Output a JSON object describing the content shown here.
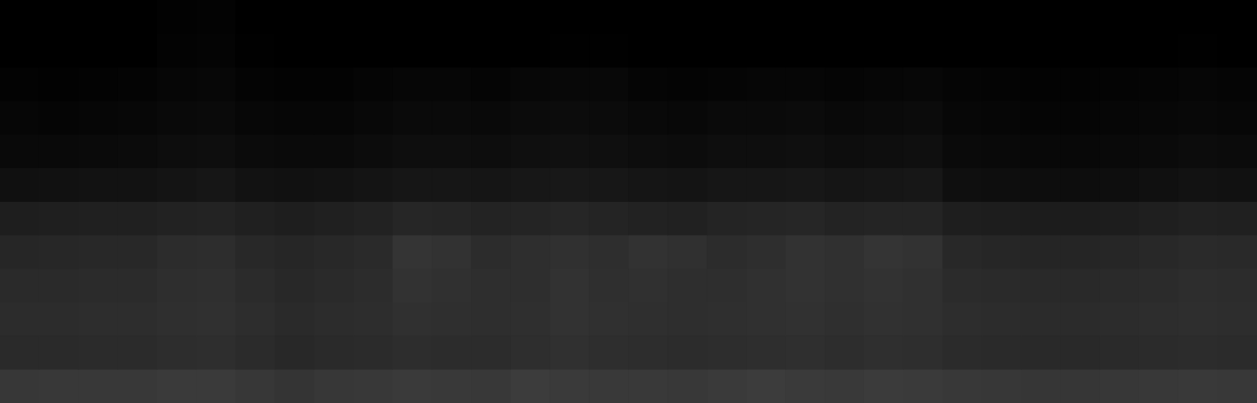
{
  "chart_data": {
    "type": "heatmap",
    "tick_labels": false,
    "color_range": [
      0,
      255
    ],
    "cells": [
      [
        0,
        0,
        0,
        0,
        2,
        3,
        0,
        0,
        0,
        0,
        0,
        0,
        0,
        0,
        0,
        0,
        0,
        0,
        0,
        0,
        0,
        0,
        0,
        0,
        0,
        0,
        0,
        0,
        0,
        0,
        0,
        0
      ],
      [
        0,
        0,
        0,
        0,
        3,
        4,
        1,
        0,
        0,
        0,
        0,
        0,
        0,
        0,
        1,
        1,
        0,
        0,
        0,
        0,
        0,
        0,
        0,
        0,
        0,
        0,
        0,
        0,
        0,
        0,
        1,
        0
      ],
      [
        3,
        2,
        3,
        4,
        6,
        7,
        4,
        3,
        3,
        5,
        6,
        6,
        5,
        7,
        8,
        8,
        5,
        4,
        5,
        6,
        6,
        5,
        6,
        7,
        5,
        4,
        3,
        3,
        4,
        5,
        6,
        5
      ],
      [
        6,
        5,
        6,
        7,
        9,
        10,
        7,
        6,
        6,
        8,
        10,
        10,
        9,
        11,
        12,
        11,
        9,
        8,
        10,
        10,
        11,
        9,
        10,
        11,
        7,
        6,
        5,
        5,
        6,
        7,
        8,
        7
      ],
      [
        9,
        9,
        10,
        11,
        13,
        14,
        11,
        10,
        10,
        12,
        14,
        14,
        13,
        15,
        16,
        15,
        13,
        12,
        14,
        14,
        15,
        13,
        14,
        15,
        10,
        9,
        8,
        8,
        9,
        10,
        12,
        11
      ],
      [
        16,
        17,
        18,
        18,
        20,
        22,
        18,
        17,
        18,
        20,
        22,
        22,
        21,
        23,
        24,
        23,
        21,
        20,
        22,
        22,
        23,
        21,
        22,
        23,
        15,
        14,
        13,
        13,
        14,
        16,
        18,
        17
      ],
      [
        30,
        31,
        32,
        32,
        34,
        35,
        32,
        30,
        32,
        34,
        38,
        37,
        35,
        36,
        38,
        36,
        34,
        33,
        36,
        37,
        38,
        35,
        36,
        36,
        30,
        29,
        28,
        28,
        29,
        31,
        33,
        32
      ],
      [
        38,
        39,
        40,
        40,
        44,
        45,
        40,
        38,
        40,
        42,
        52,
        50,
        44,
        46,
        48,
        46,
        50,
        48,
        44,
        46,
        50,
        48,
        52,
        50,
        40,
        38,
        37,
        37,
        38,
        40,
        42,
        41
      ],
      [
        42,
        42,
        43,
        43,
        46,
        47,
        43,
        40,
        42,
        44,
        50,
        48,
        46,
        46,
        50,
        47,
        48,
        46,
        46,
        48,
        50,
        48,
        50,
        48,
        43,
        42,
        41,
        41,
        42,
        43,
        45,
        44
      ],
      [
        44,
        44,
        45,
        45,
        47,
        48,
        45,
        42,
        44,
        45,
        48,
        47,
        46,
        47,
        50,
        48,
        47,
        46,
        47,
        48,
        49,
        47,
        49,
        48,
        45,
        44,
        43,
        43,
        44,
        45,
        46,
        45
      ],
      [
        42,
        42,
        43,
        43,
        45,
        46,
        43,
        40,
        42,
        43,
        45,
        44,
        44,
        46,
        48,
        46,
        45,
        44,
        45,
        46,
        47,
        45,
        47,
        46,
        43,
        42,
        41,
        41,
        42,
        43,
        44,
        43
      ],
      [
        55,
        56,
        56,
        56,
        58,
        58,
        55,
        52,
        55,
        56,
        58,
        57,
        56,
        60,
        58,
        57,
        57,
        56,
        58,
        60,
        58,
        57,
        59,
        58,
        56,
        55,
        54,
        54,
        55,
        56,
        57,
        56
      ]
    ]
  }
}
